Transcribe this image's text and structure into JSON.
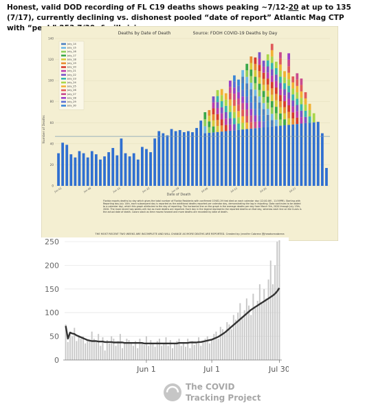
{
  "headline": {
    "part1": "Honest, valid DOD recording of FL C19 deaths shows peaking ~7/12-",
    "underlined": "20",
    "part2": " at",
    "part3": " up to 135 (7/17), currently declining vs. dishonest pooled “date of report” Atlantic Mag CTP with “peak” 253 7/30, & sill rising"
  },
  "chart_data": [
    {
      "type": "bar",
      "title": "Deaths by Date of Death",
      "source": "Source: FDOH COVID-19 Deaths by Day",
      "xlabel": "Date of Death",
      "ylabel": "Number of Deaths",
      "ylim": [
        0,
        140
      ],
      "yticks": [
        0,
        20,
        40,
        60,
        80,
        100,
        120,
        140
      ],
      "xticks": [
        "Jun-01",
        "Jun-08",
        "Jun-15",
        "Jun-22",
        "Jun-29",
        "Jul-06",
        "Jul-13",
        "Jul-20",
        "Jul-27"
      ],
      "average_line": 47,
      "stacked": true,
      "legend_position": "top-left",
      "legend": [
        "July_14",
        "July_15",
        "July_16",
        "July_17",
        "July_18",
        "July_19",
        "July_20",
        "July_21",
        "July_22",
        "July_23",
        "July_24",
        "July_25",
        "July_26",
        "July_27",
        "July_28",
        "July_29",
        "July_30"
      ],
      "legend_colors": [
        "#4a7fc1",
        "#6fb8e6",
        "#8fcf5a",
        "#3aa84a",
        "#d6c93a",
        "#e88a2e",
        "#d63a2e",
        "#b83ab0",
        "#7a52c9",
        "#36b5b0",
        "#a8d648",
        "#f2b134",
        "#e05a5a",
        "#c94a8f",
        "#9c3fc9",
        "#5a6fd6",
        "#3b86d6"
      ],
      "values": [
        31,
        41,
        39,
        30,
        27,
        33,
        31,
        27,
        33,
        30,
        25,
        28,
        32,
        36,
        29,
        45,
        31,
        28,
        31,
        25,
        37,
        35,
        32,
        45,
        52,
        50,
        48,
        54,
        52,
        53,
        51,
        52,
        51,
        55,
        62,
        70,
        72,
        85,
        91,
        92,
        88,
        100,
        105,
        101,
        110,
        116,
        123,
        122,
        127,
        119,
        125,
        135,
        118,
        127,
        109,
        126,
        104,
        107,
        102,
        89,
        78,
        69,
        61,
        50,
        17
      ]
    },
    {
      "type": "bar",
      "ylim": [
        0,
        250
      ],
      "yticks": [
        "0",
        "50",
        "100",
        "150",
        "200",
        "250"
      ],
      "xticks": [
        "Jun 1",
        "Jul 1",
        "Jul 30"
      ],
      "moving_average": true,
      "logo_line1": "The COVID",
      "logo_line2": "Tracking Project",
      "values": [
        75,
        38,
        55,
        50,
        68,
        40,
        52,
        45,
        50,
        35,
        40,
        42,
        60,
        45,
        38,
        55,
        30,
        48,
        20,
        42,
        35,
        50,
        45,
        30,
        40,
        55,
        25,
        38,
        45,
        42,
        35,
        30,
        40,
        25,
        45,
        35,
        32,
        50,
        30,
        42,
        35,
        28,
        40,
        45,
        30,
        35,
        48,
        30,
        42,
        25,
        35,
        40,
        45,
        30,
        38,
        28,
        45,
        25,
        40,
        32,
        35,
        48,
        30,
        40,
        45,
        50,
        35,
        42,
        55,
        60,
        45,
        70,
        65,
        55,
        80,
        75,
        65,
        95,
        85,
        100,
        120,
        90,
        105,
        130,
        115,
        95,
        140,
        110,
        125,
        160,
        120,
        150,
        130,
        170,
        210,
        160,
        200,
        250,
        253
      ],
      "avg": [
        72,
        45,
        58,
        56,
        55,
        52,
        50,
        48,
        46,
        44,
        42,
        41,
        40,
        40,
        40,
        39,
        39,
        39,
        38,
        38,
        38,
        38,
        37,
        37,
        37,
        37,
        37,
        36,
        36,
        36,
        36,
        36,
        36,
        36,
        36,
        36,
        35,
        35,
        35,
        35,
        35,
        35,
        35,
        35,
        35,
        35,
        35,
        35,
        35,
        35,
        35,
        35,
        36,
        36,
        36,
        36,
        36,
        37,
        37,
        37,
        37,
        38,
        38,
        39,
        40,
        41,
        42,
        43,
        45,
        47,
        49,
        52,
        55,
        58,
        62,
        66,
        70,
        74,
        78,
        82,
        86,
        90,
        94,
        98,
        102,
        106,
        109,
        112,
        115,
        118,
        121,
        124,
        127,
        130,
        133,
        136,
        140,
        145,
        152
      ]
    }
  ],
  "colors": {
    "bg_top": "#f4efd2",
    "bar_blue": "#2f6fd1",
    "avg_line": "#7d9db3",
    "bottom_bar": "#c8c8c8",
    "bottom_line": "#333333"
  },
  "notes": {
    "para": "Florida reports deaths by day which gives the total number of Florida Residents with confirmed COVID-19 that died on each calendar day (12:00 AM - 11:59PM). Starting with Reporting day July 14th, each subsequent day is reported as the additional deaths reported per calendar day, demonstrating the lag in reporting. Data continues to be added to a calendar day, which this graph attributes to the day of reporting. The horizontal line on the graph is the average deaths per day from March 5th, 2020 through July 13th, 2020. The most recent two weeks will rise as more deaths are reported. Each day in the legend represents the reported deaths on that day, whereas each line on the X-axis is the actual date of death. Colors stack as time moves forward and more deaths are recorded by date of death.",
    "footer": "THE MOST RECENT TWO WEEKS ARE INCOMPLETE AND WILL CHANGE AS MORE DEATHS ARE REPORTED. Created by: Jennifer Cabrera @jheadsrecabrera"
  }
}
